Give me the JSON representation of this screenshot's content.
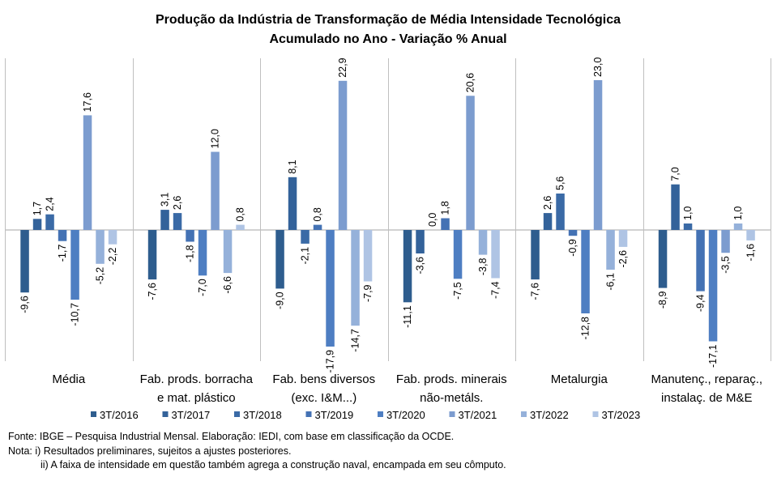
{
  "chart_data": {
    "type": "bar",
    "title": [
      "Produção  da Indústria  de Transformação  de Média  Intensidade Tecnológica",
      "Acumulado no Ano - Variação % Anual"
    ],
    "categories": [
      [
        "Média"
      ],
      [
        "Fab. prods. borracha",
        "e mat. plástico"
      ],
      [
        "Fab. bens diversos",
        "(exc. I&M...)"
      ],
      [
        "Fab. prods. minerais",
        "não-metáls."
      ],
      [
        "Metalurgia"
      ],
      [
        "Manutenç., reparaç.,",
        "instalaç. de M&E"
      ]
    ],
    "series": [
      {
        "name": "3T/2016",
        "color": "#2E5D8E",
        "values": [
          -9.6,
          -7.6,
          -9.0,
          -11.1,
          -7.6,
          -8.9
        ]
      },
      {
        "name": "3T/2017",
        "color": "#33629A",
        "values": [
          1.7,
          3.1,
          8.1,
          -3.6,
          2.6,
          7.0
        ]
      },
      {
        "name": "3T/2018",
        "color": "#3A6AA6",
        "values": [
          2.4,
          2.6,
          -2.1,
          0.0,
          5.6,
          1.0
        ]
      },
      {
        "name": "3T/2019",
        "color": "#4472B4",
        "values": [
          -1.7,
          -1.8,
          0.8,
          1.8,
          -0.9,
          -9.4
        ]
      },
      {
        "name": "3T/2020",
        "color": "#4E7EC2",
        "values": [
          -10.7,
          -7.0,
          -17.9,
          -7.5,
          -12.8,
          -17.1
        ]
      },
      {
        "name": "3T/2021",
        "color": "#7C9CCF",
        "values": [
          17.6,
          12.0,
          22.9,
          20.6,
          23.0,
          -3.5
        ]
      },
      {
        "name": "3T/2022",
        "color": "#95B1DA",
        "values": [
          -5.2,
          -6.6,
          -14.7,
          -3.8,
          -6.1,
          1.0
        ]
      },
      {
        "name": "3T/2023",
        "color": "#AFC4E4",
        "values": [
          -2.2,
          0.8,
          -7.9,
          -7.4,
          -2.6,
          -1.6
        ]
      }
    ],
    "ylim": [
      -26,
      26
    ],
    "value_labels": true,
    "value_label_rotation": -90,
    "grid": false,
    "legend_position": "bottom"
  },
  "notes": {
    "source": "Fonte: IBGE – Pesquisa Industrial Mensal. Elaboração: IEDI, com base em classificação da OCDE.",
    "note1": "Nota: i) Resultados preliminares, sujeitos a ajustes posteriores.",
    "note2": "ii) A faixa de intensidade em questão também  agrega a construção naval, encampada em seu cômputo."
  }
}
